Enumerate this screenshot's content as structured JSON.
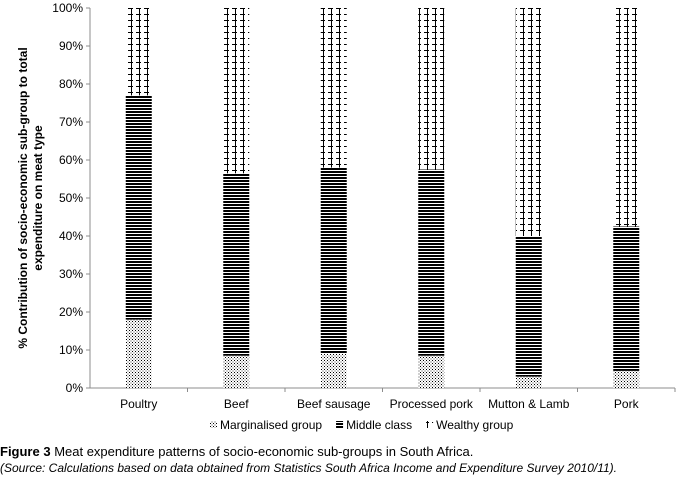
{
  "chart_data": {
    "type": "bar",
    "stacked": true,
    "categories": [
      "Poultry",
      "Beef",
      "Beef sausage",
      "Processed pork",
      "Mutton & Lamb",
      "Pork"
    ],
    "series": [
      {
        "name": "Marginalised group",
        "values": [
          18,
          8.5,
          9,
          8.5,
          3,
          4.5
        ]
      },
      {
        "name": "Middle class",
        "values": [
          59,
          48,
          49,
          49,
          37,
          38
        ]
      },
      {
        "name": "Wealthy group",
        "values": [
          23,
          43.5,
          42,
          42.5,
          60,
          57.5
        ]
      }
    ],
    "title": "",
    "xlabel": "",
    "ylabel": "% Contribution of socio-economic sub-group to total expenditure on meat type",
    "ylabel_lines": [
      "% Contribution of socio-economic sub-group to total",
      "expenditure on meat type"
    ],
    "ylim": [
      0,
      100
    ],
    "yticks": [
      "0%",
      "10%",
      "20%",
      "30%",
      "40%",
      "50%",
      "60%",
      "70%",
      "80%",
      "90%",
      "100%"
    ],
    "grid": false,
    "legend": "bottom"
  },
  "caption": {
    "figure_label": "Figure 3",
    "text": " Meat expenditure patterns of socio-economic sub-groups in South Africa."
  },
  "source": "(Source: Calculations based on data obtained from Statistics South Africa Income and Expenditure Survey 2010/11)."
}
